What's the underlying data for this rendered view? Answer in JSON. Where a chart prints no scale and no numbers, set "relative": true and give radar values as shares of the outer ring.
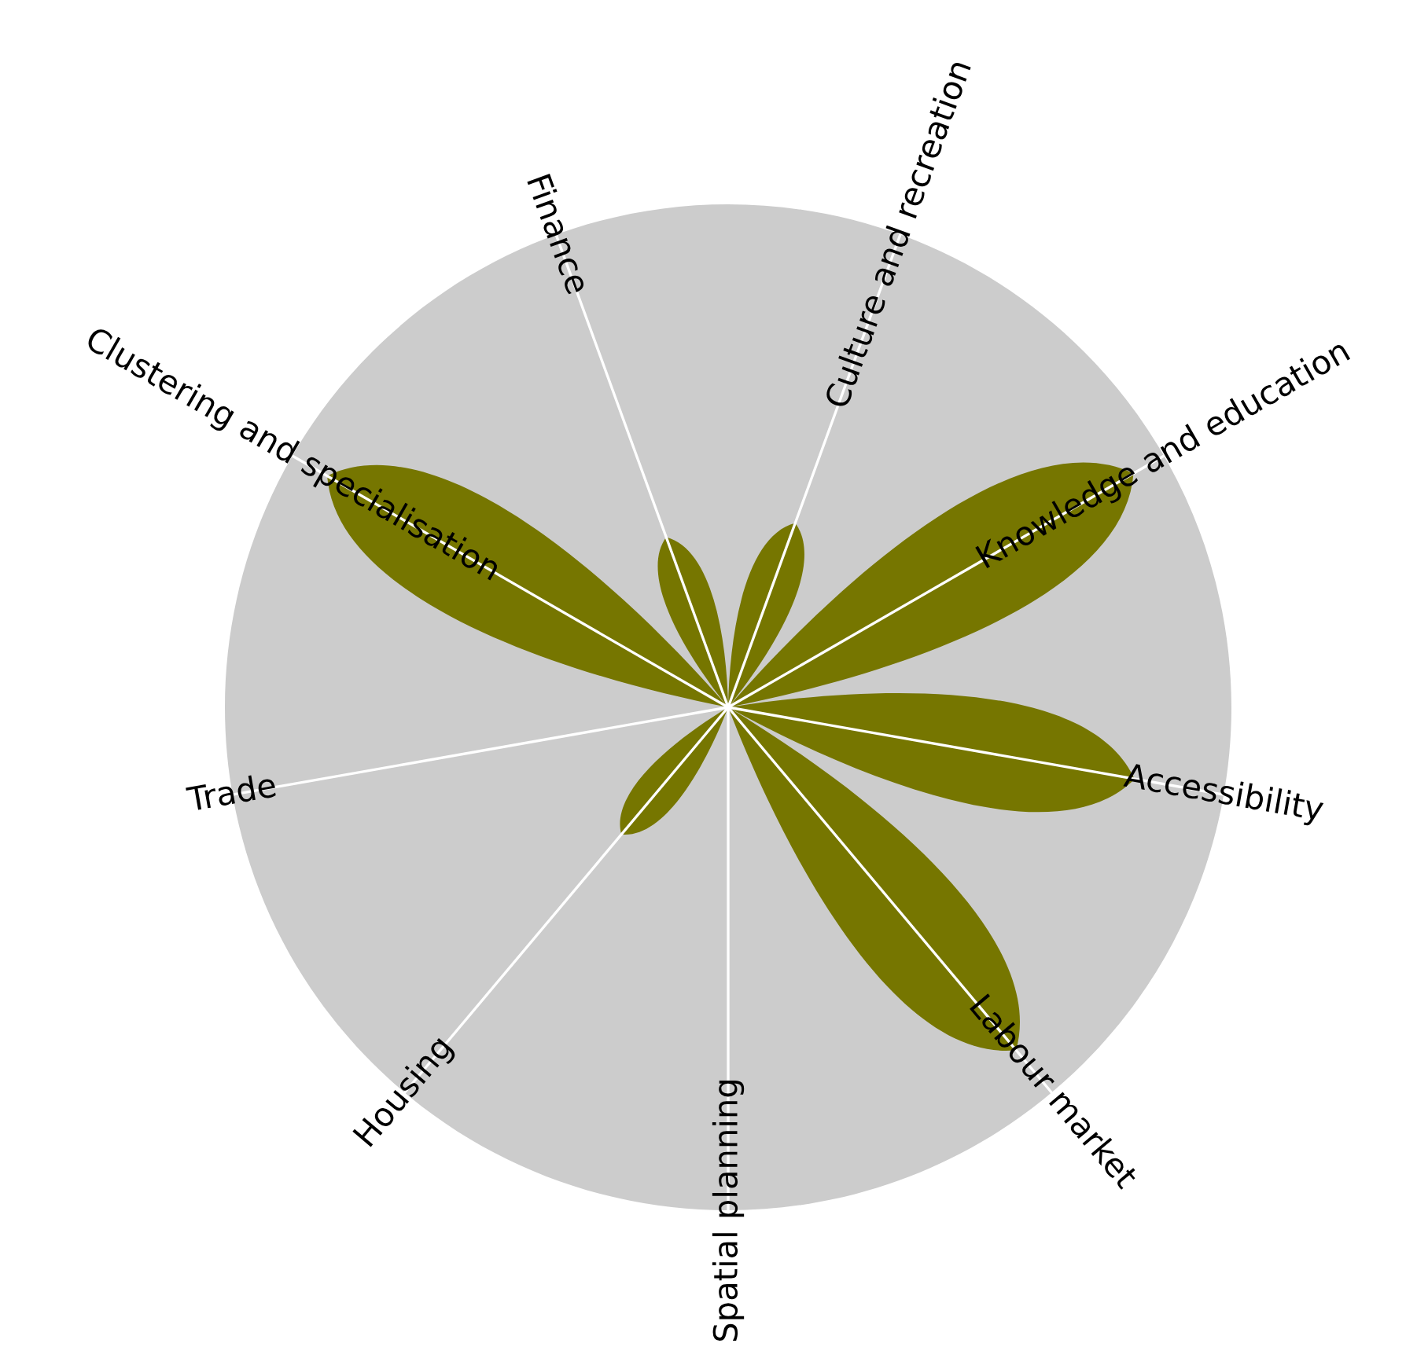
{
  "chart_data": {
    "type": "radar",
    "relative": true,
    "grid": true,
    "categories": [
      "Culture and recreation",
      "Knowledge and education",
      "Accessibility",
      "Labour market",
      "Spatial planning",
      "Housing",
      "Trade",
      "Clustering and specialisation",
      "Finance"
    ],
    "series": [
      {
        "color": "#767600",
        "values": [
          0.39,
          0.93,
          0.82,
          0.89,
          0,
          0.33,
          0,
          0.92,
          0.36
        ]
      }
    ]
  }
}
